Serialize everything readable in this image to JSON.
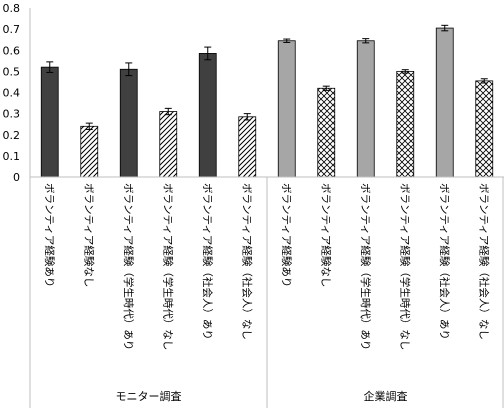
{
  "chart_data": {
    "type": "bar",
    "ylim": [
      0,
      0.8
    ],
    "yticks": [
      "0",
      "0.1",
      "0.2",
      "0.3",
      "0.4",
      "0.5",
      "0.6",
      "0.7",
      "0.8"
    ],
    "grid": false,
    "categories": [
      "ボランティア経験あり",
      "ボランティア経験なし",
      "ボランティア経験（学生時代）あり",
      "ボランティア経験（学生時代）なし",
      "ボランティア経験（社会人）あり",
      "ボランティア経験（社会人）なし",
      "ボランティア経験あり",
      "ボランティア経験なし",
      "ボランティア経験（学生時代）あり",
      "ボランティア経験（学生時代）なし",
      "ボランティア経験（社会人）あり",
      "ボランティア経験（社会人）なし"
    ],
    "values": [
      0.52,
      0.24,
      0.51,
      0.31,
      0.585,
      0.285,
      0.645,
      0.42,
      0.645,
      0.5,
      0.705,
      0.455
    ],
    "errors": [
      0.025,
      0.015,
      0.03,
      0.015,
      0.03,
      0.015,
      0.008,
      0.01,
      0.01,
      0.008,
      0.013,
      0.01
    ],
    "bar_styles": [
      "dark",
      "hatch",
      "dark",
      "hatch",
      "dark",
      "hatch",
      "gray",
      "cross",
      "gray",
      "cross",
      "gray",
      "cross"
    ],
    "groups": [
      {
        "label": "モニター調査",
        "span": [
          0,
          5
        ]
      },
      {
        "label": "企業調査",
        "span": [
          6,
          11
        ]
      }
    ],
    "colors": {
      "dark": "#404040",
      "gray": "#a6a6a6",
      "axis": "#bfbfbf",
      "stroke": "#000000"
    }
  }
}
